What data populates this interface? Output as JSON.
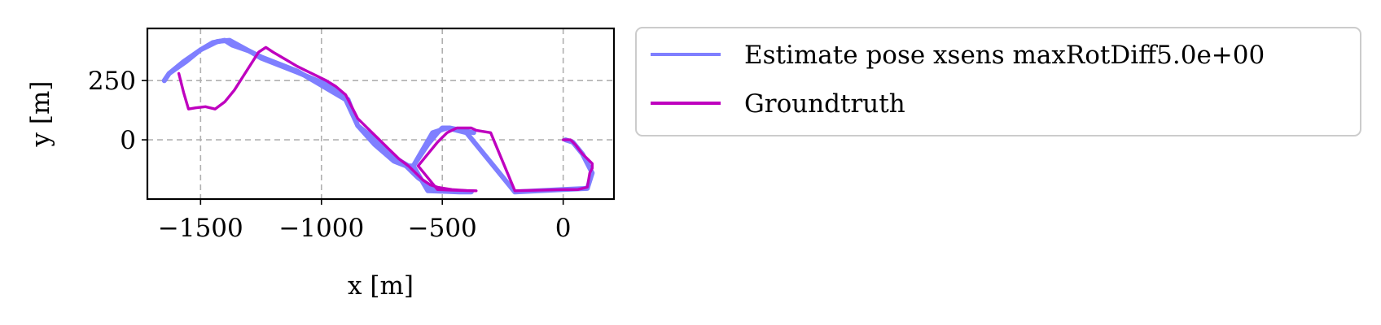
{
  "chart_data": {
    "type": "line",
    "xlabel": "x [m]",
    "ylabel": "y [m]",
    "xlim": [
      -1720,
      210
    ],
    "ylim": [
      -250,
      470
    ],
    "xticks": [
      -1500,
      -1000,
      -500,
      0
    ],
    "xtick_labels": [
      "−1500",
      "−1000",
      "−500",
      "0"
    ],
    "yticks": [
      0,
      250
    ],
    "ytick_labels": [
      "0",
      "250"
    ],
    "grid": true,
    "legend_placement": "outside-upper-right",
    "series": [
      {
        "name": "Estimate pose xsens maxRotDiff5.0e+00",
        "color": "#7f7fff",
        "x": [
          -1650,
          -1630,
          -1560,
          -1500,
          -1450,
          -1400,
          -1370,
          -1300,
          -1250,
          -1100,
          -1000,
          -900,
          -850,
          -780,
          -700,
          -650,
          -600,
          -550,
          -520,
          -500,
          -470,
          -430,
          -400,
          -380,
          -420,
          -560,
          -620,
          -540,
          -480,
          -400,
          -200,
          0,
          100,
          120,
          100,
          80,
          40,
          10
        ],
        "y": [
          250,
          280,
          330,
          380,
          410,
          420,
          400,
          375,
          350,
          290,
          230,
          170,
          60,
          -20,
          -90,
          -110,
          -160,
          -195,
          -210,
          -215,
          -218,
          -220,
          -220,
          -220,
          -220,
          -215,
          -110,
          30,
          50,
          30,
          -220,
          -210,
          -205,
          -140,
          -100,
          -60,
          -10,
          0
        ],
        "x_outline": [
          -1650,
          -1630,
          -1570,
          -1500,
          -1430,
          -1380,
          -1290,
          -1250,
          -1100,
          -970,
          -890,
          -850,
          -800,
          -740,
          -690,
          -640,
          -620,
          -560,
          -520,
          -500,
          -470,
          -420,
          -370
        ],
        "y_outline": [
          250,
          280,
          330,
          380,
          415,
          420,
          370,
          345,
          285,
          230,
          170,
          60,
          20,
          -30,
          -80,
          -110,
          -110,
          -20,
          30,
          50,
          50,
          40,
          30
        ]
      },
      {
        "name": "Groundtruth",
        "color": "#bf00bf",
        "x": [
          -1590,
          -1570,
          -1550,
          -1520,
          -1480,
          -1440,
          -1400,
          -1360,
          -1310,
          -1260,
          -1230,
          -1200,
          -1150,
          -1100,
          -1040,
          -980,
          -940,
          -900,
          -880,
          -850,
          -800,
          -760,
          -720,
          -680,
          -640,
          -610,
          -580,
          -550,
          -520,
          -490,
          -460,
          -430,
          -400,
          -370,
          -360,
          -400,
          -470,
          -520,
          -600,
          -560,
          -520,
          -480,
          -440,
          -380,
          -360,
          -300,
          -200,
          0,
          60,
          100,
          110,
          120,
          120,
          80,
          50,
          30,
          0
        ],
        "y": [
          280,
          200,
          130,
          135,
          140,
          130,
          160,
          210,
          290,
          370,
          390,
          370,
          340,
          310,
          280,
          250,
          225,
          190,
          150,
          90,
          40,
          0,
          -40,
          -80,
          -110,
          -140,
          -170,
          -190,
          -200,
          -205,
          -210,
          -212,
          -214,
          -215,
          -215,
          -214,
          -212,
          -210,
          -110,
          -60,
          -10,
          30,
          50,
          50,
          40,
          30,
          -215,
          -210,
          -210,
          -200,
          -140,
          -120,
          -100,
          -60,
          -20,
          0,
          0
        ]
      }
    ]
  }
}
